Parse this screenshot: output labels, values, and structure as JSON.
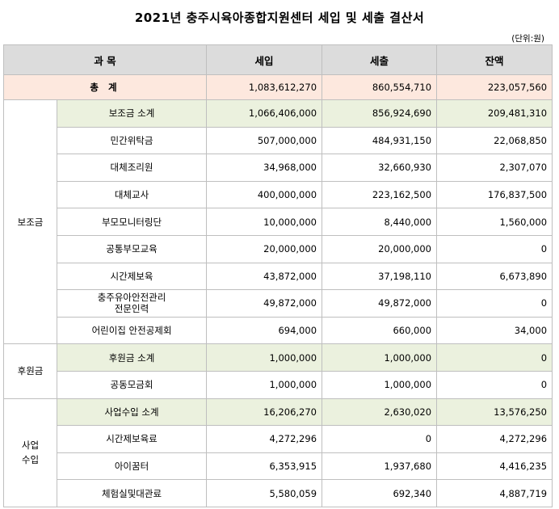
{
  "title": "2021년 충주시육아종합지원센터 세입 및 세출 결산서",
  "unit": "(단위:원)",
  "headers": {
    "subject": "과 목",
    "income": "세입",
    "expense": "세출",
    "balance": "잔액"
  },
  "total": {
    "label": "총 계",
    "income": "1,083,612,270",
    "expense": "860,554,710",
    "balance": "223,057,560"
  },
  "groups": [
    {
      "name": "보조금",
      "rows": [
        {
          "label": "보조금 소계",
          "income": "1,066,406,000",
          "expense": "856,924,690",
          "balance": "209,481,310"
        },
        {
          "label": "민간위탁금",
          "income": "507,000,000",
          "expense": "484,931,150",
          "balance": "22,068,850"
        },
        {
          "label": "대체조리원",
          "income": "34,968,000",
          "expense": "32,660,930",
          "balance": "2,307,070"
        },
        {
          "label": "대체교사",
          "income": "400,000,000",
          "expense": "223,162,500",
          "balance": "176,837,500"
        },
        {
          "label": "부모모니터링단",
          "income": "10,000,000",
          "expense": "8,440,000",
          "balance": "1,560,000"
        },
        {
          "label": "공통부모교육",
          "income": "20,000,000",
          "expense": "20,000,000",
          "balance": "0"
        },
        {
          "label": "시간제보육",
          "income": "43,872,000",
          "expense": "37,198,110",
          "balance": "6,673,890"
        },
        {
          "label_line1": "충주유아안전관리",
          "label_line2": "전문인력",
          "income": "49,872,000",
          "expense": "49,872,000",
          "balance": "0"
        },
        {
          "label": "어린이집 안전공제회",
          "income": "694,000",
          "expense": "660,000",
          "balance": "34,000"
        }
      ]
    },
    {
      "name": "후원금",
      "rows": [
        {
          "label": "후원금 소계",
          "income": "1,000,000",
          "expense": "1,000,000",
          "balance": "0"
        },
        {
          "label": "공동모금회",
          "income": "1,000,000",
          "expense": "1,000,000",
          "balance": "0"
        }
      ]
    },
    {
      "name_line1": "사업",
      "name_line2": "수입",
      "rows": [
        {
          "label": "사업수입 소계",
          "income": "16,206,270",
          "expense": "2,630,020",
          "balance": "13,576,250"
        },
        {
          "label": "시간제보육료",
          "income": "4,272,296",
          "expense": "0",
          "balance": "4,272,296"
        },
        {
          "label": "아이꿈터",
          "income": "6,353,915",
          "expense": "1,937,680",
          "balance": "4,416,235"
        },
        {
          "label": "체험실및대관료",
          "income": "5,580,059",
          "expense": "692,340",
          "balance": "4,887,719"
        }
      ]
    }
  ],
  "colors": {
    "header_bg": "#dcdcdc",
    "total_bg": "#fde8de",
    "subtotal_bg": "#ebf1de",
    "border": "#bfbfbf"
  }
}
